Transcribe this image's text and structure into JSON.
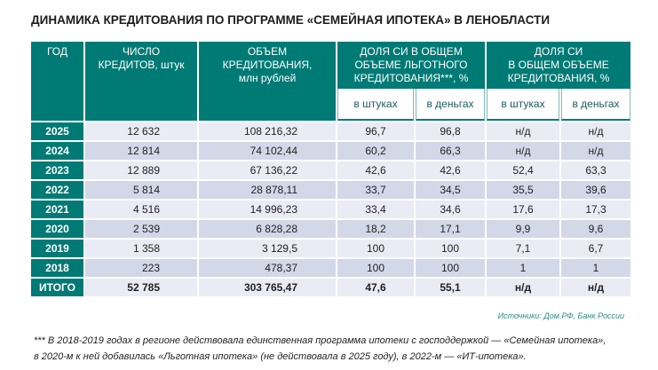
{
  "title": "ДИНАМИКА КРЕДИТОВАНИЯ ПО ПРОГРАММЕ «СЕМЕЙНАЯ ИПОТЕКА» В ЛЕНОБЛАСТИ",
  "headers": {
    "year": "ГОД",
    "count": "ЧИСЛО КРЕДИТОВ, штук",
    "volume_1": "ОБЪЕМ",
    "volume_2": "КРЕДИТОВАНИЯ,",
    "volume_3": "млн рублей",
    "share_pref": "ДОЛЯ СИ В ОБЩЕМ ОБЪЕМЕ ЛЬГОТНОГО КРЕДИТОВАНИЯ***, %",
    "share_total_1": "ДОЛЯ СИ",
    "share_total_2": "В ОБЩЕМ ОБЪЕМЕ КРЕДИТОВАНИЯ, %",
    "sub": [
      "в штуках",
      "в деньгах",
      "в штуках",
      "в деньгах"
    ]
  },
  "rows": [
    [
      "2025",
      "12 632",
      "108 216,32",
      "96,7",
      "96,8",
      "н/д",
      "н/д"
    ],
    [
      "2024",
      "12 814",
      "74 102,44",
      "60,2",
      "66,3",
      "н/д",
      "н/д"
    ],
    [
      "2023",
      "12 889",
      "67 136,22",
      "42,6",
      "42,6",
      "52,4",
      "63,3"
    ],
    [
      "2022",
      "5 814",
      "28 878,11",
      "33,7",
      "34,5",
      "35,5",
      "39,6"
    ],
    [
      "2021",
      "4 516",
      "14 996,23",
      "33,4",
      "34,6",
      "17,6",
      "17,3"
    ],
    [
      "2020",
      "2 539",
      "6 828,28",
      "18,2",
      "17,1",
      "9,9",
      "9,6"
    ],
    [
      "2019",
      "1 358",
      "3 129,5",
      "100",
      "100",
      "7,1",
      "6,7"
    ],
    [
      "2018",
      "223",
      "478,37",
      "100",
      "100",
      "1",
      "1"
    ],
    [
      "ИТОГО",
      "52 785",
      "303 765,47",
      "47,6",
      "55,1",
      "н/д",
      "н/д"
    ]
  ],
  "sources": "Источники: Дом.РФ, Банк России",
  "footnote_1": "*** В 2018-2019 годах в регионе действовала единственная программа ипотеки с господдержкой — «Семейная ипотека»,",
  "footnote_2": "в 2020-м к ней добавилась «Льготная ипотека» (не действовала в 2025 году), в 2022-м — «ИТ-ипотека»."
}
